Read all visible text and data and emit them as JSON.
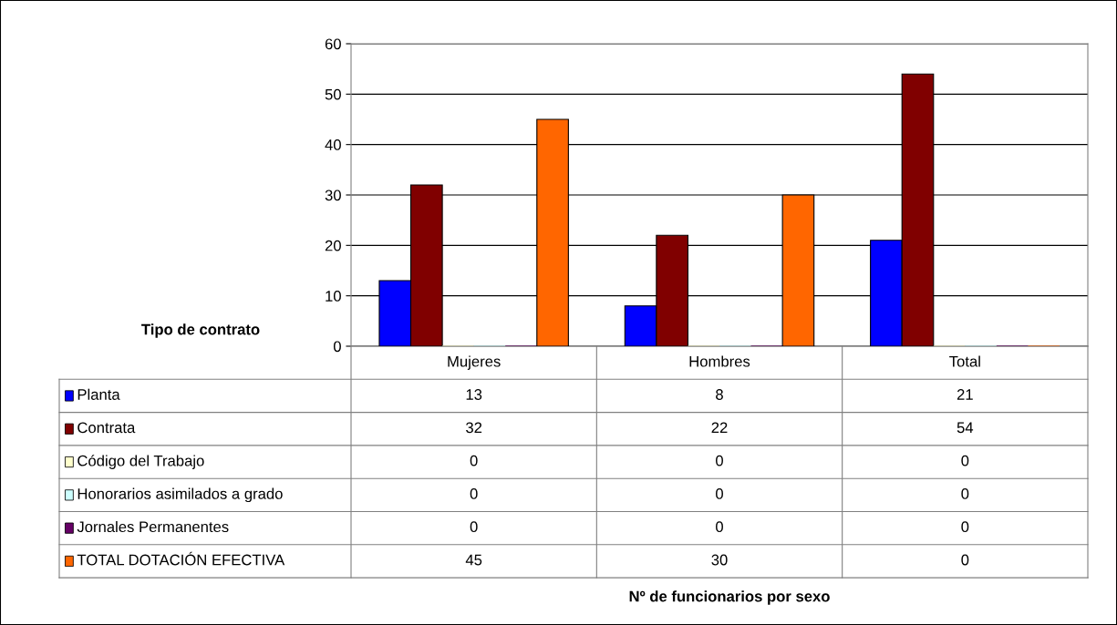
{
  "chart_data": {
    "type": "bar",
    "ylabel": "Tipo de contrato",
    "annotations": [
      "Nº de funcionarios por sexo"
    ],
    "categories": [
      "Mujeres",
      "Hombres",
      "Total"
    ],
    "series": [
      {
        "name": "Planta",
        "color": "#0000ff",
        "values": [
          13,
          8,
          21
        ]
      },
      {
        "name": "Contrata",
        "color": "#800000",
        "values": [
          32,
          22,
          54
        ]
      },
      {
        "name": "Código del Trabajo",
        "color": "#ffffcc",
        "values": [
          0,
          0,
          0
        ]
      },
      {
        "name": "Honorarios asimilados a grado",
        "color": "#ccffff",
        "values": [
          0,
          0,
          0
        ]
      },
      {
        "name": "Jornales Permanentes",
        "color": "#660066",
        "values": [
          0,
          0,
          0
        ]
      },
      {
        "name": "TOTAL DOTACIÓN EFECTIVA",
        "color": "#ff6600",
        "values": [
          45,
          30,
          0
        ]
      }
    ],
    "ylim": [
      0,
      60
    ],
    "yticks": [
      0,
      10,
      20,
      30,
      40,
      50,
      60
    ],
    "grid": "y",
    "legend": "left",
    "data_labels": true
  }
}
